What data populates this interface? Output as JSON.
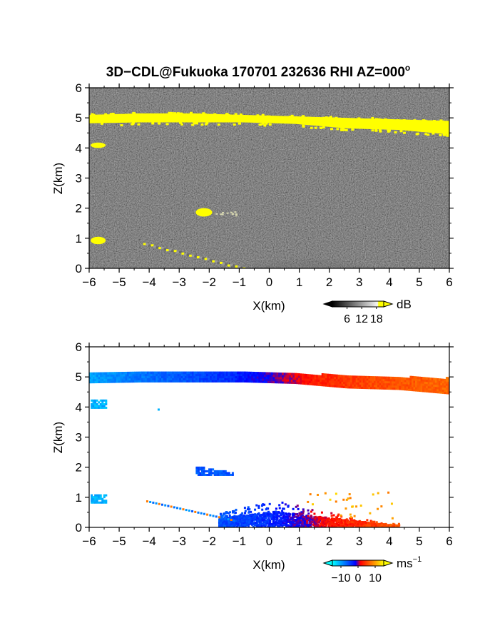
{
  "title": "3D−CDL@Fukuoka 170701 232636 RHI AZ=000",
  "title_degree": "o",
  "chart_data": [
    {
      "type": "heatmap",
      "panel": "reflectivity",
      "xlabel": "X(km)",
      "ylabel": "Z(km)",
      "xlim": [
        -6,
        6
      ],
      "ylim": [
        0,
        6
      ],
      "xticks": [
        "−6",
        "−5",
        "−4",
        "−3",
        "−2",
        "−1",
        "0",
        "1",
        "2",
        "3",
        "4",
        "5",
        "6"
      ],
      "yticks": [
        "0",
        "1",
        "2",
        "3",
        "4",
        "5",
        "6"
      ],
      "background": "noise",
      "colorbar": {
        "unit": "dB",
        "ticks": [
          "6",
          "12",
          "18"
        ],
        "tick_values": [
          6,
          12,
          18
        ],
        "range": [
          0,
          21
        ],
        "colors": [
          "#000000",
          "#ffffff",
          "#ffff00"
        ]
      },
      "features": [
        {
          "name": "cloud layer",
          "x_range": [
            -6,
            6
          ],
          "z_top": [
            5.1,
            5.15,
            5.15,
            5.1,
            5.05,
            5.0,
            4.95,
            4.9
          ],
          "z_bottom": [
            4.82,
            4.85,
            4.85,
            4.85,
            4.8,
            4.65,
            4.6,
            4.45
          ],
          "value": 20
        },
        {
          "name": "small echo",
          "x_range": [
            -5.95,
            -5.45
          ],
          "z_range": [
            4.0,
            4.18
          ],
          "value": 20
        },
        {
          "name": "echo",
          "x_range": [
            -2.45,
            -1.9
          ],
          "z_range": [
            1.72,
            2.0
          ],
          "value": 20
        },
        {
          "name": "low echo",
          "x_range": [
            -5.95,
            -5.45
          ],
          "z_range": [
            0.8,
            1.05
          ],
          "value": 20
        },
        {
          "name": "boundary layer",
          "x_range": [
            -1.5,
            3.5
          ],
          "z_range": [
            0,
            0.9
          ],
          "value": 10
        }
      ]
    },
    {
      "type": "heatmap",
      "panel": "doppler velocity",
      "xlabel": "X(km)",
      "ylabel": "Z(km)",
      "xlim": [
        -6,
        6
      ],
      "ylim": [
        0,
        6
      ],
      "xticks": [
        "−6",
        "−5",
        "−4",
        "−3",
        "−2",
        "−1",
        "0",
        "1",
        "2",
        "3",
        "4",
        "5",
        "6"
      ],
      "yticks": [
        "0",
        "1",
        "2",
        "3",
        "4",
        "5",
        "6"
      ],
      "background": "white",
      "colorbar": {
        "unit": "ms",
        "unit_exp": "−1",
        "ticks": [
          "−10",
          "0",
          "10"
        ],
        "tick_values": [
          -10,
          0,
          10
        ],
        "range": [
          -15,
          15
        ],
        "colors": [
          "#00ffff",
          "#0000ff",
          "#ff0000",
          "#ffff00"
        ]
      },
      "features": [
        {
          "name": "cloud layer",
          "x_range": [
            -6,
            6
          ],
          "velocity": [
            -10,
            -8,
            -6,
            -4,
            -1,
            3,
            5,
            6,
            7
          ]
        },
        {
          "name": "small echo",
          "x_range": [
            -5.95,
            -5.45
          ],
          "z_range": [
            3.95,
            4.2
          ],
          "velocity": -11
        },
        {
          "name": "echo",
          "x_range": [
            -2.45,
            -1.2
          ],
          "z_range": [
            1.72,
            2.0
          ],
          "velocity": -6
        },
        {
          "name": "low echo",
          "x_range": [
            -5.95,
            -5.45
          ],
          "z_range": [
            0.8,
            1.05
          ],
          "velocity": -11
        },
        {
          "name": "near-surface flow",
          "x_range": [
            -1.7,
            4.3
          ],
          "z_range": [
            0,
            1.0
          ],
          "velocity": [
            -6,
            -3,
            3,
            6
          ]
        }
      ]
    }
  ]
}
